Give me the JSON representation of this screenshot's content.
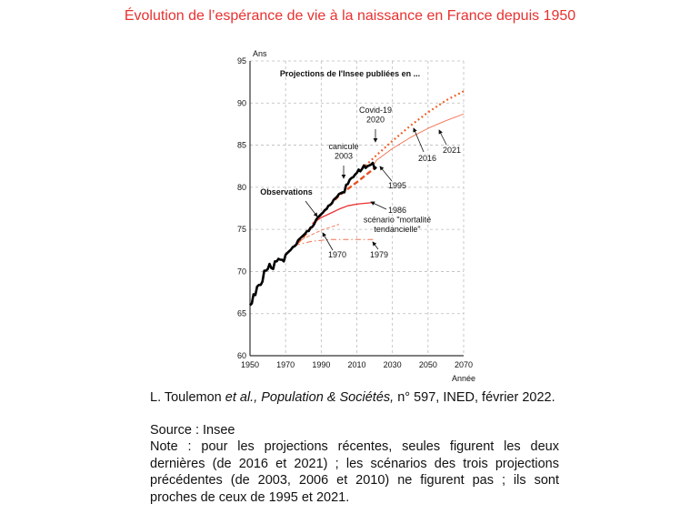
{
  "title": "Évolution de l’espérance de vie à la naissance en France depuis 1950",
  "chart_data": {
    "type": "line",
    "title": "Projections de l'Insee publiées en ...",
    "xlabel": "Année",
    "ylabel": "Ans",
    "xlim": [
      1950,
      2070
    ],
    "ylim": [
      60,
      95
    ],
    "xticks": [
      1950,
      1970,
      1990,
      2010,
      2030,
      2050,
      2070
    ],
    "yticks": [
      60,
      65,
      70,
      75,
      80,
      85,
      90,
      95
    ],
    "grid": true,
    "series": [
      {
        "name": "Observations",
        "color": "#000000",
        "style": "solid-thick",
        "x": [
          1950,
          1951,
          1952,
          1953,
          1954,
          1955,
          1956,
          1957,
          1958,
          1959,
          1960,
          1961,
          1962,
          1963,
          1964,
          1965,
          1966,
          1967,
          1968,
          1969,
          1970,
          1971,
          1972,
          1973,
          1974,
          1975,
          1976,
          1977,
          1978,
          1979,
          1980,
          1981,
          1982,
          1983,
          1984,
          1985,
          1986,
          1987,
          1988,
          1989,
          1990,
          1991,
          1992,
          1993,
          1994,
          1995,
          1996,
          1997,
          1998,
          1999,
          2000,
          2001,
          2002,
          2003,
          2004,
          2005,
          2006,
          2007,
          2008,
          2009,
          2010,
          2011,
          2012,
          2013,
          2014,
          2015,
          2016,
          2017,
          2018,
          2019,
          2020,
          2021
        ],
        "y": [
          66.0,
          66.2,
          67.3,
          67.2,
          68.2,
          68.4,
          68.4,
          68.8,
          70.1,
          70.1,
          70.3,
          70.9,
          70.4,
          70.3,
          71.2,
          71.2,
          71.5,
          71.4,
          71.4,
          71.2,
          72.0,
          72.2,
          72.4,
          72.6,
          72.9,
          73.0,
          73.2,
          73.7,
          73.9,
          74.1,
          74.3,
          74.5,
          74.8,
          74.8,
          75.2,
          75.3,
          75.6,
          76.1,
          76.4,
          76.6,
          76.8,
          77.0,
          77.3,
          77.4,
          77.8,
          77.9,
          78.1,
          78.5,
          78.7,
          78.9,
          79.2,
          79.3,
          79.4,
          79.4,
          80.3,
          80.4,
          80.9,
          81.1,
          81.2,
          81.5,
          81.7,
          82.1,
          81.9,
          82.2,
          82.6,
          82.3,
          82.5,
          82.6,
          82.7,
          82.9,
          82.2,
          82.4
        ]
      },
      {
        "name": "1970",
        "color": "#f08060",
        "style": "dashed-thin",
        "x": [
          1970,
          1975,
          1980,
          1990,
          2000
        ],
        "y": [
          72.0,
          73.0,
          73.9,
          74.9,
          75.6
        ]
      },
      {
        "name": "1979",
        "color": "#f07050",
        "style": "dashdot",
        "x": [
          1975,
          1985,
          1995,
          2005,
          2020
        ],
        "y": [
          73.1,
          73.6,
          73.8,
          73.8,
          73.8
        ]
      },
      {
        "name": "1986",
        "color": "#e8312f",
        "style": "solid",
        "x": [
          1985,
          1990,
          1995,
          2000,
          2005,
          2010,
          2015,
          2020
        ],
        "y": [
          75.7,
          76.4,
          76.9,
          77.4,
          77.8,
          78.0,
          78.1,
          78.2
        ]
      },
      {
        "name": "1995",
        "color": "#e8501f",
        "style": "dashed-thick",
        "x": [
          1970,
          1980,
          1990,
          2000,
          2010,
          2020
        ],
        "y": [
          72.0,
          74.1,
          76.8,
          79.0,
          80.6,
          82.3
        ]
      },
      {
        "name": "2016",
        "color": "#f05a1e",
        "style": "dotted",
        "x": [
          2013,
          2020,
          2030,
          2040,
          2050,
          2060,
          2070
        ],
        "y": [
          82.2,
          83.6,
          85.5,
          87.3,
          88.9,
          90.3,
          91.4
        ]
      },
      {
        "name": "2021",
        "color": "#f07050",
        "style": "solid-thin",
        "x": [
          2020,
          2021,
          2030,
          2040,
          2050,
          2060,
          2070
        ],
        "y": [
          82.8,
          83.2,
          84.6,
          85.9,
          87.0,
          87.9,
          88.7
        ]
      }
    ],
    "annotations": [
      {
        "id": "covid",
        "lines": [
          "Covid-19",
          "2020"
        ]
      },
      {
        "id": "canicule",
        "lines": [
          "canicule",
          "2003"
        ]
      },
      {
        "id": "a2016",
        "lines": [
          "2016"
        ]
      },
      {
        "id": "a2021",
        "lines": [
          "2021"
        ]
      },
      {
        "id": "a1995",
        "lines": [
          "1995"
        ]
      },
      {
        "id": "obs",
        "lines": [
          "Observations"
        ]
      },
      {
        "id": "a1986",
        "lines": [
          "1986",
          "scénario \"mortalité",
          "tendancielle\""
        ]
      },
      {
        "id": "a1970",
        "lines": [
          "1970"
        ]
      },
      {
        "id": "a1979",
        "lines": [
          "1979"
        ]
      }
    ]
  },
  "footer": {
    "citation_author": "L. Toulemon ",
    "citation_etal": "et al., Population & Sociétés,",
    "citation_rest": " n° 597, INED, février 2022.",
    "source": "Source : Insee",
    "note": "Note : pour les projections récentes, seules figurent les deux dernières (de 2016 et 2021) ; les scénarios des trois projections précédentes (de 2003, 2006 et 2010) ne figurent pas ; ils sont proches de ceux de 1995 et 2021."
  }
}
